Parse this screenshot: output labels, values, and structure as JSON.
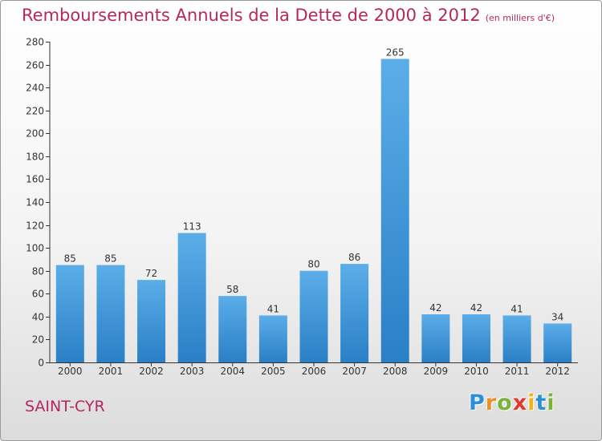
{
  "chart_data": {
    "type": "bar",
    "title": "Remboursements Annuels de la Dette de 2000 à 2012",
    "subtitle": "(en milliers d'€)",
    "categories": [
      "2000",
      "2001",
      "2002",
      "2003",
      "2004",
      "2005",
      "2006",
      "2007",
      "2008",
      "2009",
      "2010",
      "2011",
      "2012"
    ],
    "values": [
      85,
      85,
      72,
      113,
      58,
      41,
      80,
      86,
      265,
      42,
      42,
      41,
      34
    ],
    "ylim": [
      0,
      280
    ],
    "yticks": [
      0,
      20,
      40,
      60,
      80,
      100,
      120,
      140,
      160,
      180,
      200,
      220,
      240,
      260,
      280
    ],
    "grid": false,
    "bar_color_top": "#5baee8",
    "bar_color_bottom": "#2a7fc6"
  },
  "footer": {
    "city": "SAINT-CYR",
    "logo_letters": [
      {
        "ch": "P",
        "color": "#2b8fd6"
      },
      {
        "ch": "r",
        "color": "#f28c28"
      },
      {
        "ch": "o",
        "color": "#7ab33a"
      },
      {
        "ch": "x",
        "color": "#e23a2c"
      },
      {
        "ch": "i",
        "color": "#f2b21b"
      },
      {
        "ch": "t",
        "color": "#2b8fd6"
      },
      {
        "ch": "i",
        "color": "#7ab33a"
      }
    ]
  },
  "colors": {
    "title": "#b5285e",
    "axis": "#333333"
  }
}
